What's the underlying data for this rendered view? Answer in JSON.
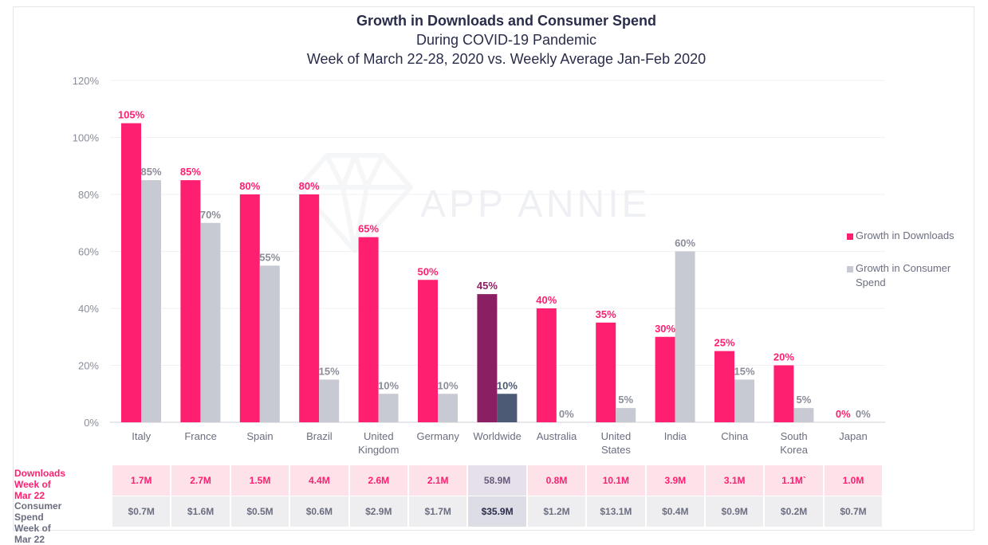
{
  "chart_data": {
    "type": "bar",
    "title": "Growth in Downloads and Consumer Spend",
    "subtitle": "During COVID-19 Pandemic",
    "subtitle2": "Week of March 22-28, 2020 vs. Weekly Average Jan-Feb 2020",
    "watermark": "APP ANNIE",
    "categories": [
      "Italy",
      "France",
      "Spain",
      "Brazil",
      "United Kingdom",
      "Germany",
      "Worldwide",
      "Australia",
      "United States",
      "India",
      "China",
      "South Korea",
      "Japan"
    ],
    "category_lines": [
      [
        "Italy"
      ],
      [
        "France"
      ],
      [
        "Spain"
      ],
      [
        "Brazil"
      ],
      [
        "United",
        "Kingdom"
      ],
      [
        "Germany"
      ],
      [
        "Worldwide"
      ],
      [
        "Australia"
      ],
      [
        "United",
        "States"
      ],
      [
        "India"
      ],
      [
        "China"
      ],
      [
        "South",
        "Korea"
      ],
      [
        "Japan"
      ]
    ],
    "ylim": [
      0,
      120
    ],
    "yticks": [
      0,
      20,
      40,
      60,
      80,
      100,
      120
    ],
    "ytick_labels": [
      "0%",
      "20%",
      "40%",
      "60%",
      "80%",
      "100%",
      "120%"
    ],
    "highlight_category": "Worldwide",
    "series": [
      {
        "name": "Growth in Downloads",
        "color": "#ff1f70",
        "highlight_color": "#8a1f63",
        "values": [
          105,
          85,
          80,
          80,
          65,
          50,
          45,
          40,
          35,
          30,
          25,
          20,
          0
        ],
        "labels": [
          "105%",
          "85%",
          "80%",
          "80%",
          "65%",
          "50%",
          "45%",
          "40%",
          "35%",
          "30%",
          "25%",
          "20%",
          "0%"
        ]
      },
      {
        "name": "Growth in Consumer Spend",
        "color": "#c8cad3",
        "highlight_color": "#4d5a75",
        "values": [
          85,
          70,
          55,
          15,
          10,
          10,
          10,
          0,
          5,
          60,
          15,
          5,
          0
        ],
        "labels": [
          "85%",
          "70%",
          "55%",
          "15%",
          "10%",
          "10%",
          "10%",
          "0%",
          "5%",
          "60%",
          "15%",
          "5%",
          "0%"
        ]
      }
    ],
    "legend": [
      {
        "lines": [
          "Growth in Downloads"
        ],
        "color": "#ff1f70"
      },
      {
        "lines": [
          "Growth in Consumer",
          "Spend"
        ],
        "color": "#c8cad3"
      }
    ],
    "legend_placement": "right",
    "grid": true
  },
  "table": {
    "downloads": {
      "label_lines": [
        "Downloads",
        "Week of Mar 22"
      ],
      "values": [
        "1.7M",
        "2.7M",
        "1.5M",
        "4.4M",
        "2.6M",
        "2.1M",
        "58.9M",
        "0.8M",
        "10.1M",
        "3.9M",
        "3.1M",
        "1.1M`",
        "1.0M"
      ],
      "bg": "#fde2ea",
      "highlight_bg": "#e6e0ea",
      "color": "#ff1f70",
      "highlight_color": "#6a5a7a"
    },
    "spend": {
      "label_lines": [
        "Consumer Spend",
        "Week of Mar 22"
      ],
      "values": [
        "$0.7M",
        "$1.6M",
        "$0.5M",
        "$0.6M",
        "$2.9M",
        "$1.7M",
        "$35.9M",
        "$1.2M",
        "$13.1M",
        "$0.4M",
        "$0.9M",
        "$0.2M",
        "$0.7M"
      ],
      "bg": "#eeeef1",
      "highlight_bg": "#dcdde5",
      "color": "#6b6e80",
      "highlight_color": "#2a2d4a"
    }
  }
}
